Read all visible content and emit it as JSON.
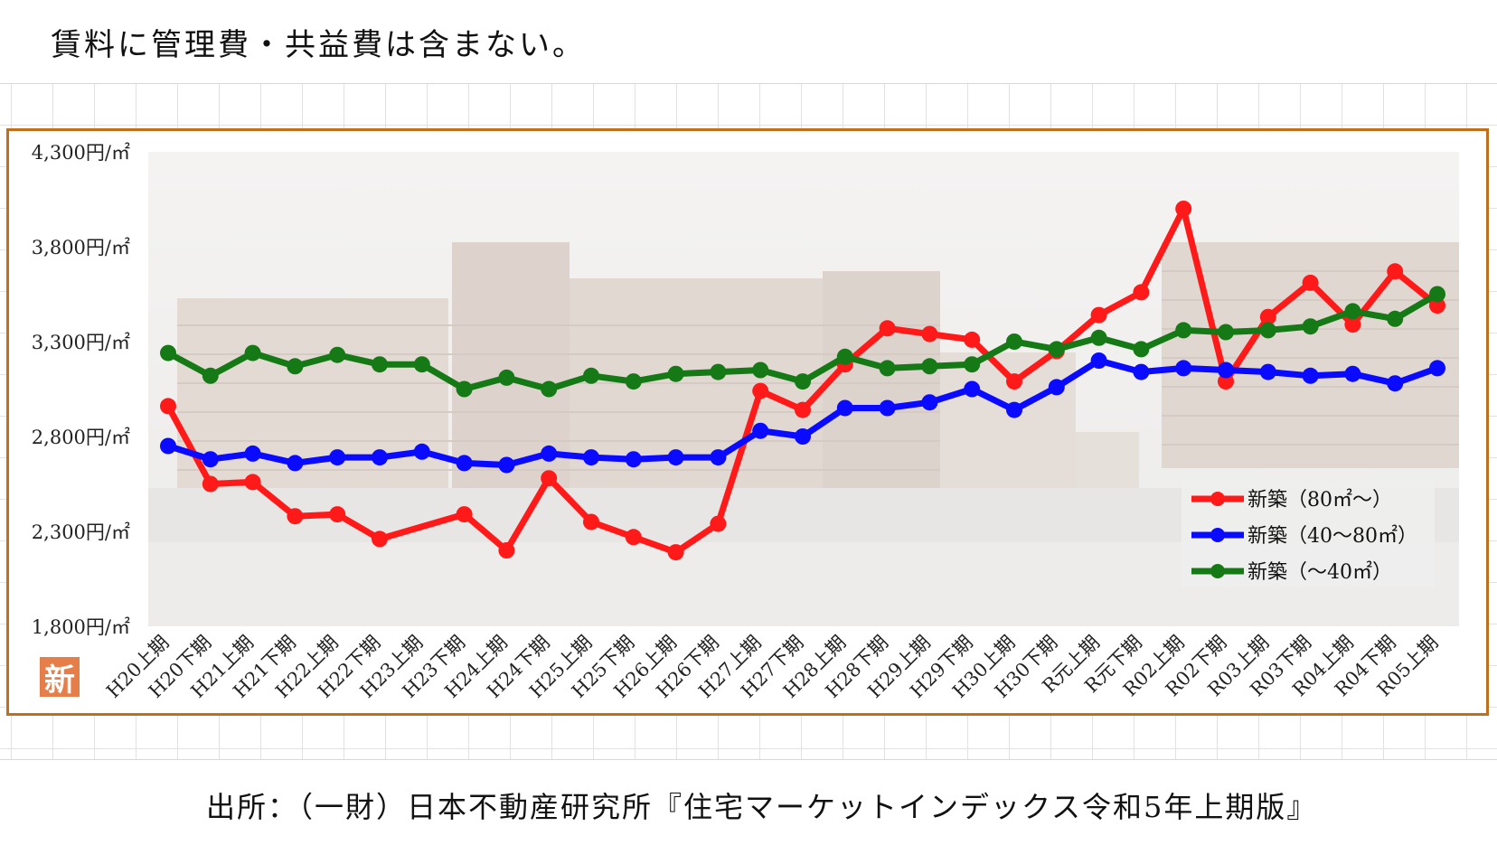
{
  "note": "賃料に管理費・共益費は含まない。",
  "source": "出所：（一財）日本不動産研究所『住宅マーケットインデックス令和5年上期版』",
  "logo_text": "新",
  "chart_data": {
    "type": "line",
    "ylim": [
      1800,
      4300
    ],
    "yticks": [
      1800,
      2300,
      2800,
      3300,
      3800,
      4300
    ],
    "ytick_labels": [
      "1,800円/㎡",
      "2,300円/㎡",
      "2,800円/㎡",
      "3,300円/㎡",
      "3,800円/㎡",
      "4,300円/㎡"
    ],
    "categories": [
      "H20上期",
      "H20下期",
      "H21上期",
      "H21下期",
      "H22上期",
      "H22下期",
      "H23上期",
      "H23下期",
      "H24上期",
      "H24下期",
      "H25上期",
      "H25下期",
      "H26上期",
      "H26下期",
      "H27上期",
      "H27下期",
      "H28上期",
      "H28下期",
      "H29上期",
      "H29下期",
      "H30上期",
      "H30下期",
      "R元上期",
      "R元下期",
      "R02上期",
      "R02下期",
      "R03上期",
      "R03下期",
      "R04上期",
      "R04下期",
      "R05上期"
    ],
    "grid": false,
    "legend_position": "bottom-right",
    "series": [
      {
        "name": "新築（80㎡～）",
        "color": "#ff1a1a",
        "values": [
          2960,
          2550,
          2560,
          2380,
          2390,
          2260,
          null,
          2390,
          2200,
          2580,
          2350,
          2270,
          2190,
          2340,
          3040,
          2940,
          3180,
          3370,
          3340,
          3310,
          3090,
          3250,
          3440,
          3560,
          4000,
          3090,
          3430,
          3610,
          3390,
          3670,
          3490
        ]
      },
      {
        "name": "新築（40～80㎡）",
        "color": "#0a0aff",
        "values": [
          2750,
          2680,
          2710,
          2660,
          2690,
          2690,
          2720,
          2660,
          2650,
          2710,
          2690,
          2680,
          2690,
          2690,
          2830,
          2800,
          2950,
          2950,
          2980,
          3050,
          2940,
          3060,
          3200,
          3140,
          3160,
          3150,
          3140,
          3120,
          3130,
          3080,
          3160
        ]
      },
      {
        "name": "新築（～40㎡）",
        "color": "#157a15",
        "values": [
          3240,
          3120,
          3240,
          3170,
          3230,
          3180,
          3180,
          3050,
          3110,
          3050,
          3120,
          3090,
          3130,
          3140,
          3150,
          3090,
          3220,
          3160,
          3170,
          3180,
          3300,
          3260,
          3320,
          3260,
          3360,
          3350,
          3360,
          3380,
          3460,
          3420,
          3550
        ]
      }
    ]
  }
}
